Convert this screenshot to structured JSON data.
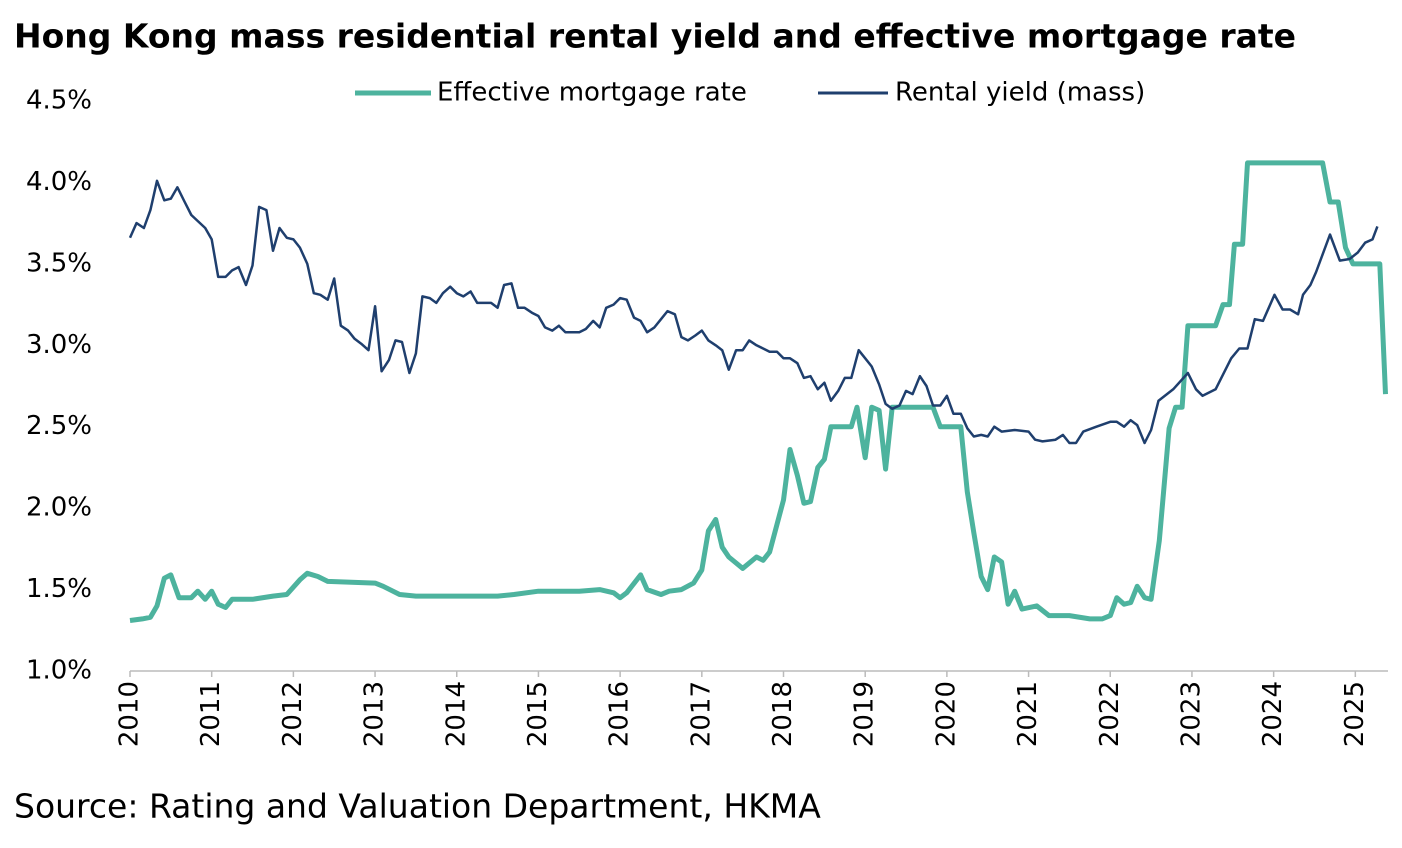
{
  "chart_data": {
    "type": "line",
    "title": "Hong Kong mass residential rental yield and effective mortgage rate",
    "source": "Source: Rating and Valuation Department, HKMA",
    "xlim": [
      2010,
      2025.4
    ],
    "xticks": [
      2010,
      2011,
      2012,
      2013,
      2014,
      2015,
      2016,
      2017,
      2018,
      2019,
      2020,
      2021,
      2022,
      2023,
      2024,
      2025
    ],
    "ylim": [
      1.0,
      4.5
    ],
    "yticks": [
      {
        "value": 1.0,
        "label": "1.0%"
      },
      {
        "value": 1.5,
        "label": "1.5%"
      },
      {
        "value": 2.0,
        "label": "2.0%"
      },
      {
        "value": 2.5,
        "label": "2.5%"
      },
      {
        "value": 3.0,
        "label": "3.0%"
      },
      {
        "value": 3.5,
        "label": "3.5%"
      },
      {
        "value": 4.0,
        "label": "4.0%"
      },
      {
        "value": 4.5,
        "label": "4.5%"
      }
    ],
    "series": [
      {
        "name": "Effective mortgage rate",
        "color": "#4db39e",
        "x": [
          2010.0,
          2010.15,
          2010.25,
          2010.33,
          2010.42,
          2010.5,
          2010.6,
          2010.75,
          2010.83,
          2010.92,
          2011.0,
          2011.08,
          2011.17,
          2011.25,
          2011.5,
          2011.75,
          2011.92,
          2012.08,
          2012.17,
          2012.3,
          2012.42,
          2013.0,
          2013.1,
          2013.3,
          2013.5,
          2014.5,
          2014.7,
          2015.0,
          2015.5,
          2015.75,
          2015.92,
          2016.0,
          2016.08,
          2016.25,
          2016.33,
          2016.5,
          2016.6,
          2016.75,
          2016.9,
          2017.0,
          2017.08,
          2017.17,
          2017.25,
          2017.33,
          2017.5,
          2017.67,
          2017.75,
          2017.83,
          2018.0,
          2018.08,
          2018.17,
          2018.25,
          2018.33,
          2018.42,
          2018.5,
          2018.58,
          2018.83,
          2018.9,
          2019.0,
          2019.08,
          2019.17,
          2019.25,
          2019.33,
          2019.83,
          2019.92,
          2020.17,
          2020.25,
          2020.33,
          2020.42,
          2020.5,
          2020.58,
          2020.67,
          2020.75,
          2020.83,
          2020.92,
          2021.1,
          2021.25,
          2021.5,
          2021.75,
          2021.9,
          2022.0,
          2022.08,
          2022.17,
          2022.25,
          2022.33,
          2022.42,
          2022.5,
          2022.6,
          2022.67,
          2022.72,
          2022.8,
          2022.88,
          2022.95,
          2023.29,
          2023.38,
          2023.46,
          2023.52,
          2023.62,
          2023.68,
          2024.6,
          2024.69,
          2024.79,
          2024.88,
          2024.97,
          2025.3,
          2025.37
        ],
        "values": [
          1.31,
          1.32,
          1.33,
          1.4,
          1.57,
          1.59,
          1.45,
          1.45,
          1.49,
          1.44,
          1.49,
          1.41,
          1.39,
          1.44,
          1.44,
          1.46,
          1.47,
          1.56,
          1.6,
          1.58,
          1.55,
          1.54,
          1.52,
          1.47,
          1.46,
          1.46,
          1.47,
          1.49,
          1.49,
          1.5,
          1.48,
          1.45,
          1.48,
          1.59,
          1.5,
          1.47,
          1.49,
          1.5,
          1.54,
          1.62,
          1.86,
          1.93,
          1.76,
          1.7,
          1.63,
          1.7,
          1.68,
          1.73,
          2.05,
          2.36,
          2.2,
          2.03,
          2.04,
          2.25,
          2.3,
          2.5,
          2.5,
          2.62,
          2.31,
          2.62,
          2.6,
          2.24,
          2.62,
          2.62,
          2.5,
          2.5,
          2.1,
          1.85,
          1.58,
          1.5,
          1.7,
          1.67,
          1.41,
          1.49,
          1.38,
          1.4,
          1.34,
          1.34,
          1.32,
          1.32,
          1.34,
          1.45,
          1.41,
          1.42,
          1.52,
          1.45,
          1.44,
          1.8,
          2.2,
          2.49,
          2.62,
          2.62,
          3.12,
          3.12,
          3.25,
          3.25,
          3.62,
          3.62,
          4.12,
          4.12,
          3.88,
          3.88,
          3.6,
          3.5,
          3.5,
          2.7
        ]
      },
      {
        "name": "Rental yield (mass)",
        "color": "#1f3f6e",
        "x": [
          2010.0,
          2010.08,
          2010.17,
          2010.25,
          2010.33,
          2010.42,
          2010.5,
          2010.58,
          2010.67,
          2010.75,
          2010.92,
          2011.0,
          2011.08,
          2011.17,
          2011.25,
          2011.33,
          2011.42,
          2011.5,
          2011.58,
          2011.67,
          2011.75,
          2011.83,
          2011.92,
          2012.0,
          2012.08,
          2012.17,
          2012.25,
          2012.33,
          2012.42,
          2012.5,
          2012.58,
          2012.67,
          2012.75,
          2012.83,
          2012.92,
          2013.0,
          2013.08,
          2013.17,
          2013.25,
          2013.33,
          2013.42,
          2013.5,
          2013.58,
          2013.67,
          2013.75,
          2013.83,
          2013.92,
          2014.0,
          2014.08,
          2014.17,
          2014.25,
          2014.42,
          2014.5,
          2014.58,
          2014.67,
          2014.75,
          2014.83,
          2014.92,
          2015.0,
          2015.08,
          2015.17,
          2015.25,
          2015.33,
          2015.5,
          2015.58,
          2015.67,
          2015.75,
          2015.83,
          2015.92,
          2016.0,
          2016.08,
          2016.17,
          2016.25,
          2016.33,
          2016.42,
          2016.5,
          2016.58,
          2016.67,
          2016.75,
          2016.83,
          2016.92,
          2017.0,
          2017.08,
          2017.17,
          2017.25,
          2017.33,
          2017.42,
          2017.5,
          2017.58,
          2017.67,
          2017.75,
          2017.83,
          2017.92,
          2018.0,
          2018.08,
          2018.17,
          2018.25,
          2018.33,
          2018.42,
          2018.5,
          2018.58,
          2018.67,
          2018.75,
          2018.83,
          2018.92,
          2019.0,
          2019.08,
          2019.17,
          2019.25,
          2019.33,
          2019.42,
          2019.5,
          2019.58,
          2019.67,
          2019.75,
          2019.83,
          2019.92,
          2020.0,
          2020.08,
          2020.17,
          2020.25,
          2020.33,
          2020.42,
          2020.5,
          2020.58,
          2020.67,
          2020.83,
          2021.0,
          2021.08,
          2021.17,
          2021.33,
          2021.42,
          2021.5,
          2021.58,
          2021.67,
          2021.83,
          2022.0,
          2022.08,
          2022.17,
          2022.25,
          2022.33,
          2022.42,
          2022.5,
          2022.59,
          2022.77,
          2022.95,
          2023.05,
          2023.13,
          2023.29,
          2023.48,
          2023.58,
          2023.68,
          2023.77,
          2023.87,
          2024.01,
          2024.11,
          2024.2,
          2024.3,
          2024.36,
          2024.45,
          2024.52,
          2024.69,
          2024.81,
          2024.93,
          2025.03,
          2025.12,
          2025.21,
          2025.27
        ],
        "values": [
          3.66,
          3.75,
          3.72,
          3.83,
          4.01,
          3.89,
          3.9,
          3.97,
          3.88,
          3.8,
          3.72,
          3.65,
          3.42,
          3.42,
          3.46,
          3.48,
          3.37,
          3.49,
          3.85,
          3.83,
          3.58,
          3.72,
          3.66,
          3.65,
          3.6,
          3.5,
          3.32,
          3.31,
          3.28,
          3.41,
          3.12,
          3.09,
          3.04,
          3.01,
          2.97,
          3.24,
          2.84,
          2.91,
          3.03,
          3.02,
          2.83,
          2.95,
          3.3,
          3.29,
          3.26,
          3.32,
          3.36,
          3.32,
          3.3,
          3.33,
          3.26,
          3.26,
          3.23,
          3.37,
          3.38,
          3.23,
          3.23,
          3.2,
          3.18,
          3.11,
          3.09,
          3.12,
          3.08,
          3.08,
          3.1,
          3.15,
          3.11,
          3.23,
          3.25,
          3.29,
          3.28,
          3.17,
          3.15,
          3.08,
          3.11,
          3.16,
          3.21,
          3.19,
          3.05,
          3.03,
          3.06,
          3.09,
          3.03,
          3.0,
          2.97,
          2.85,
          2.97,
          2.97,
          3.03,
          3.0,
          2.98,
          2.96,
          2.96,
          2.92,
          2.92,
          2.89,
          2.8,
          2.81,
          2.73,
          2.77,
          2.66,
          2.72,
          2.8,
          2.8,
          2.97,
          2.92,
          2.87,
          2.76,
          2.64,
          2.61,
          2.63,
          2.72,
          2.7,
          2.81,
          2.75,
          2.63,
          2.63,
          2.69,
          2.58,
          2.58,
          2.49,
          2.44,
          2.45,
          2.44,
          2.5,
          2.47,
          2.48,
          2.47,
          2.42,
          2.41,
          2.42,
          2.45,
          2.4,
          2.4,
          2.47,
          2.5,
          2.53,
          2.53,
          2.5,
          2.54,
          2.51,
          2.4,
          2.48,
          2.66,
          2.73,
          2.83,
          2.73,
          2.69,
          2.73,
          2.92,
          2.98,
          2.98,
          3.16,
          3.15,
          3.31,
          3.22,
          3.22,
          3.19,
          3.31,
          3.37,
          3.45,
          3.68,
          3.52,
          3.53,
          3.57,
          3.63,
          3.65,
          3.73
        ]
      }
    ]
  }
}
